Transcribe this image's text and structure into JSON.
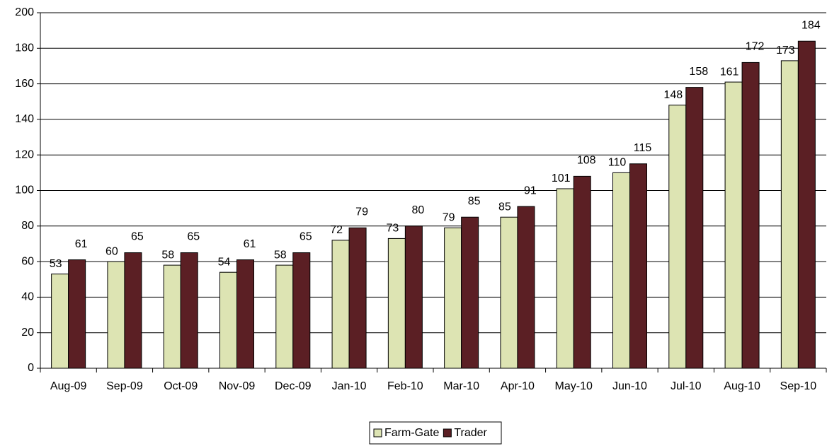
{
  "chart_data": {
    "type": "bar",
    "categories": [
      "Aug-09",
      "Sep-09",
      "Oct-09",
      "Nov-09",
      "Dec-09",
      "Jan-10",
      "Feb-10",
      "Mar-10",
      "Apr-10",
      "May-10",
      "Jun-10",
      "Jul-10",
      "Aug-10",
      "Sep-10"
    ],
    "series": [
      {
        "name": "Farm-Gate",
        "color": "#dde4b3",
        "values": [
          53,
          60,
          58,
          54,
          58,
          72,
          73,
          79,
          85,
          101,
          110,
          148,
          161,
          173
        ]
      },
      {
        "name": "Trader",
        "color": "#5b1f24",
        "values": [
          61,
          65,
          65,
          61,
          65,
          79,
          80,
          85,
          91,
          108,
          115,
          158,
          172,
          184
        ]
      }
    ],
    "ylim": [
      0,
      200
    ],
    "yticks": [
      0,
      20,
      40,
      60,
      80,
      100,
      120,
      140,
      160,
      180,
      200
    ],
    "grid": true,
    "legend": "bottom"
  }
}
